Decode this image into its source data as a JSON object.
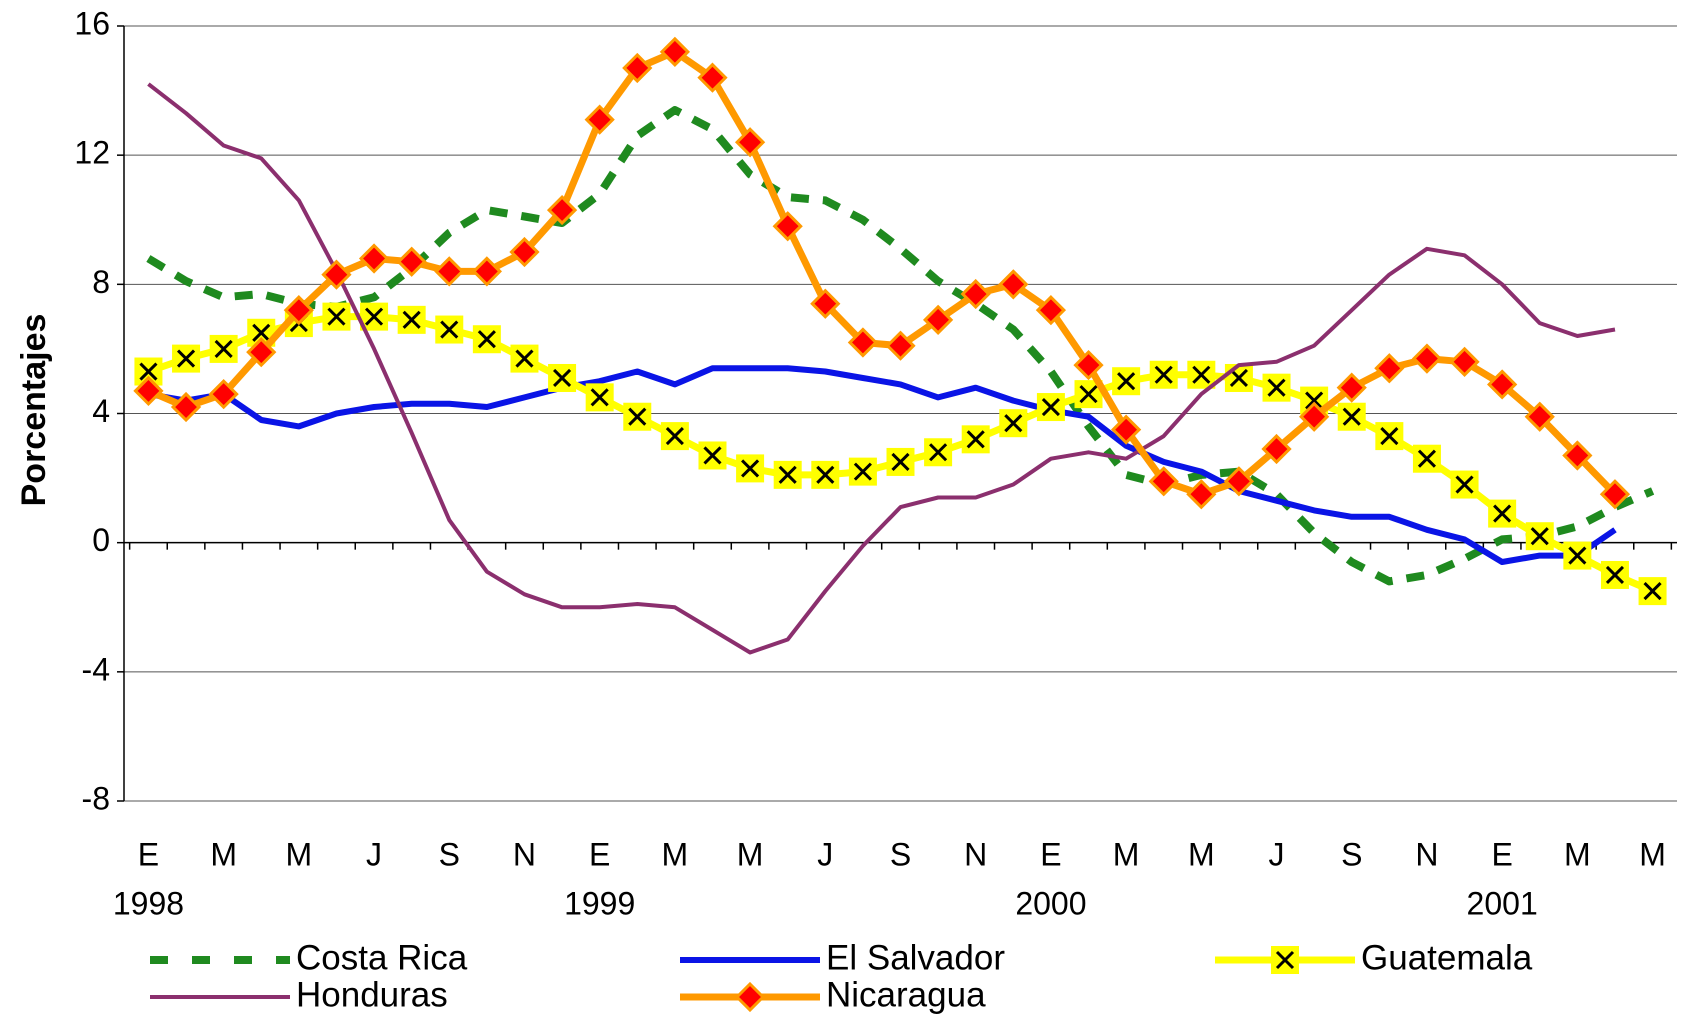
{
  "chart_data": {
    "type": "line",
    "y_label": "Porcentajes",
    "categories": [
      "E",
      null,
      "M",
      null,
      "M",
      null,
      "J",
      null,
      "S",
      null,
      "N",
      null,
      "E",
      null,
      "M",
      null,
      "M",
      null,
      "J",
      null,
      "S",
      null,
      "N",
      null,
      "E",
      null,
      "M",
      null,
      "M",
      null,
      "J",
      null,
      "S",
      null,
      "N",
      null,
      "E",
      null,
      "M",
      null,
      "M"
    ],
    "years": [
      "1998",
      null,
      null,
      null,
      null,
      null,
      null,
      null,
      null,
      null,
      null,
      null,
      "1999",
      null,
      null,
      null,
      null,
      null,
      null,
      null,
      null,
      null,
      null,
      null,
      "2000",
      null,
      null,
      null,
      null,
      null,
      null,
      null,
      null,
      null,
      null,
      null,
      "2001",
      null,
      null,
      null,
      null
    ],
    "ylim": [
      -8,
      16
    ],
    "yticks": [
      -8,
      -4,
      0,
      4,
      8,
      12,
      16
    ],
    "grid": true,
    "legend": "bottom",
    "series": [
      {
        "name": "Costa Rica",
        "color": "#1f8a1f",
        "dash": true,
        "values": [
          8.8,
          8.1,
          7.6,
          7.7,
          7.4,
          7.3,
          7.6,
          8.5,
          9.6,
          10.3,
          10.1,
          9.9,
          10.8,
          12.6,
          13.4,
          12.8,
          11.4,
          10.7,
          10.6,
          10.0,
          9.1,
          8.1,
          7.4,
          6.6,
          5.3,
          3.6,
          2.1,
          1.8,
          2.1,
          2.2,
          1.5,
          0.3,
          -0.6,
          -1.2,
          -1.0,
          -0.5,
          0.1,
          0.2,
          0.5,
          1.1,
          1.6
        ]
      },
      {
        "name": "El Salvador",
        "color": "#0a14e6",
        "values": [
          4.6,
          4.4,
          4.6,
          3.8,
          3.6,
          4.0,
          4.2,
          4.3,
          4.3,
          4.2,
          4.5,
          4.8,
          5.0,
          5.3,
          4.9,
          5.4,
          5.4,
          5.4,
          5.3,
          5.1,
          4.9,
          4.5,
          4.8,
          4.4,
          4.1,
          3.9,
          3.0,
          2.5,
          2.2,
          1.6,
          1.3,
          1.0,
          0.8,
          0.8,
          0.4,
          0.1,
          -0.6,
          -0.4,
          -0.4,
          0.4,
          null
        ]
      },
      {
        "name": "Guatemala",
        "color": "#ffff00",
        "marker": "x-square",
        "marker_color": "#000000",
        "values": [
          5.3,
          5.7,
          6.0,
          6.5,
          6.8,
          7.0,
          7.0,
          6.9,
          6.6,
          6.3,
          5.7,
          5.1,
          4.5,
          3.9,
          3.3,
          2.7,
          2.3,
          2.1,
          2.1,
          2.2,
          2.5,
          2.8,
          3.2,
          3.7,
          4.2,
          4.6,
          5.0,
          5.2,
          5.2,
          5.1,
          4.8,
          4.4,
          3.9,
          3.3,
          2.6,
          1.8,
          0.9,
          0.2,
          -0.4,
          -1.0,
          -1.5
        ]
      },
      {
        "name": "Honduras",
        "color": "#8b2f6e",
        "values": [
          14.2,
          13.3,
          12.3,
          11.9,
          10.6,
          8.4,
          6.0,
          3.4,
          0.7,
          -0.9,
          -1.6,
          -2.0,
          -2.0,
          -1.9,
          -2.0,
          -2.7,
          -3.4,
          -3.0,
          -1.5,
          -0.1,
          1.1,
          1.4,
          1.4,
          1.8,
          2.6,
          2.8,
          2.6,
          3.3,
          4.6,
          5.5,
          5.6,
          6.1,
          7.2,
          8.3,
          9.1,
          8.9,
          8.0,
          6.8,
          6.4,
          6.6,
          null
        ]
      },
      {
        "name": "Nicaragua",
        "color": "#ff9900",
        "marker": "diamond",
        "marker_color": "#ff0000",
        "values": [
          4.7,
          4.2,
          4.6,
          5.9,
          7.2,
          8.3,
          8.8,
          8.7,
          8.4,
          8.4,
          9.0,
          10.3,
          13.1,
          14.7,
          15.2,
          14.4,
          12.4,
          9.8,
          7.4,
          6.2,
          6.1,
          6.9,
          7.7,
          8.0,
          7.2,
          5.5,
          3.5,
          1.9,
          1.5,
          1.9,
          2.9,
          3.9,
          4.8,
          5.4,
          5.7,
          5.6,
          4.9,
          3.9,
          2.7,
          1.5,
          null
        ]
      }
    ]
  }
}
